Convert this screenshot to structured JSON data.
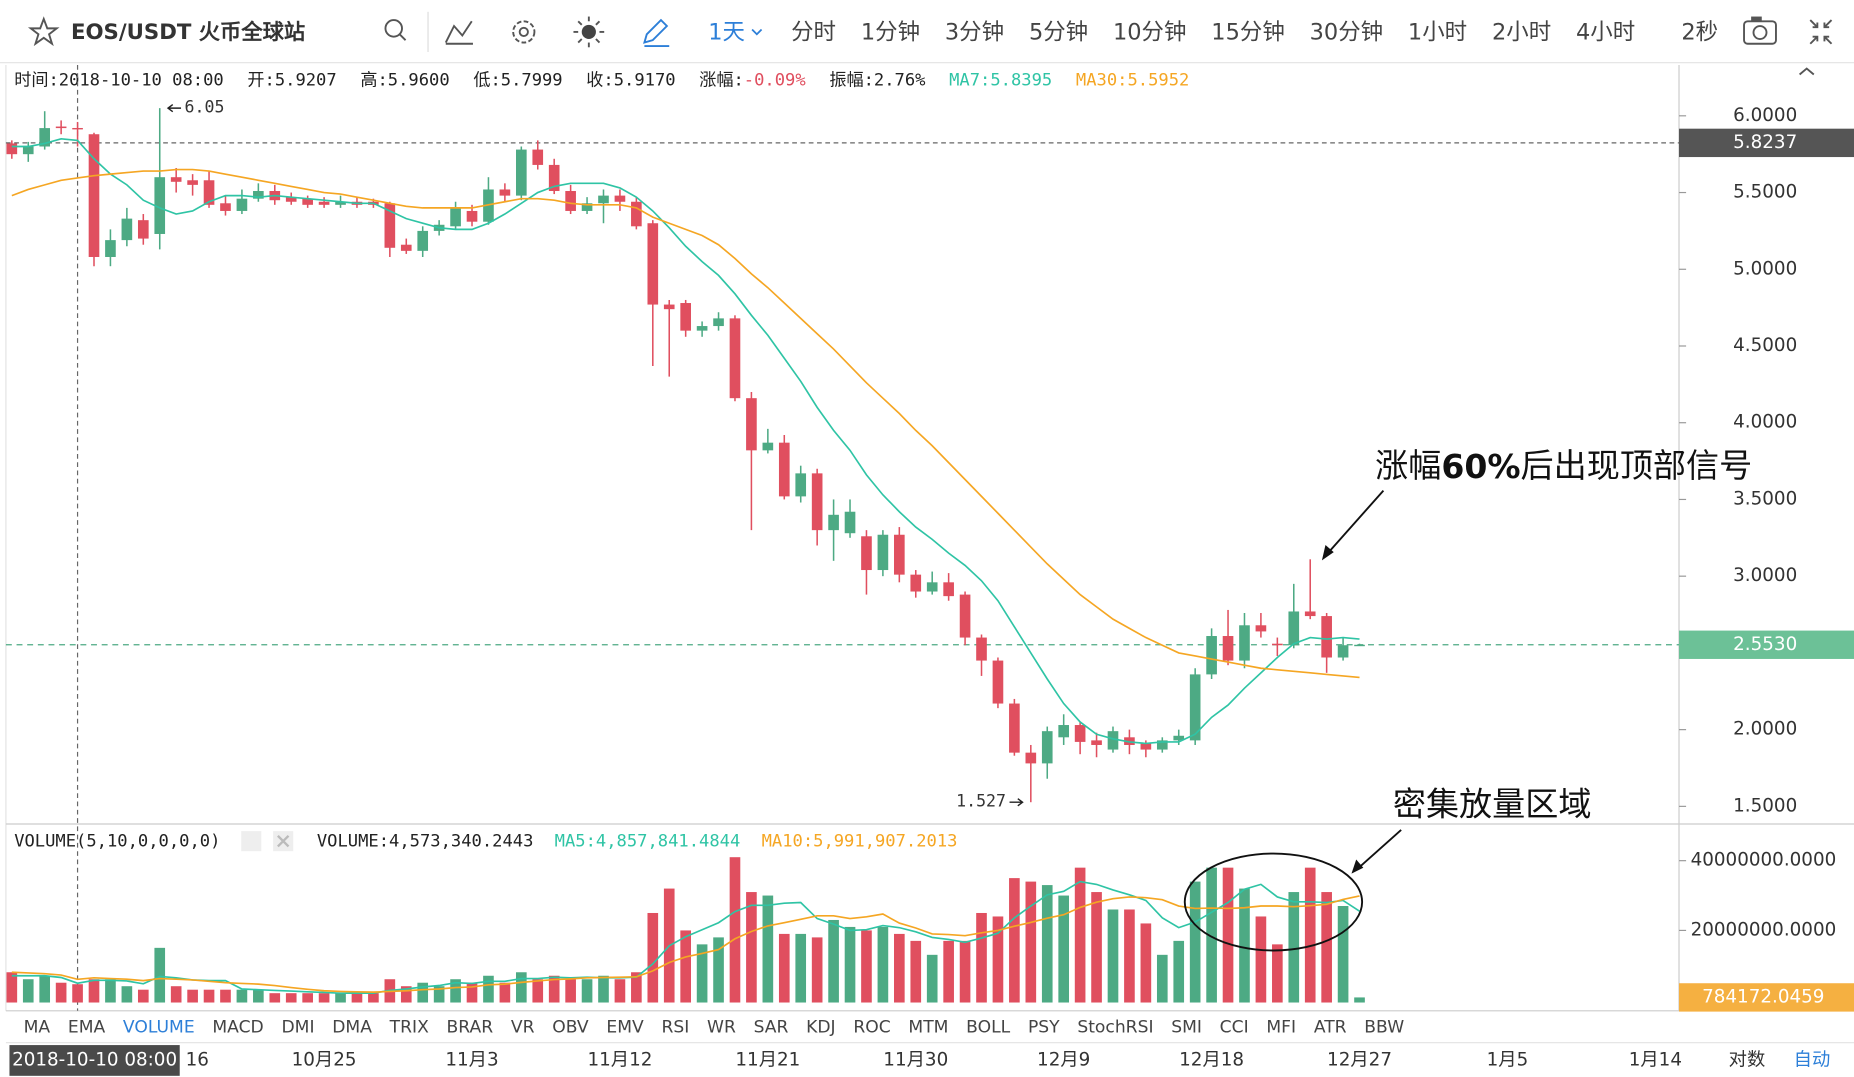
{
  "toolbar": {
    "symbol": "EOS/USDT 火币全球站",
    "intervals": [
      {
        "label": "1天",
        "selected": true
      },
      {
        "label": "分时"
      },
      {
        "label": "1分钟"
      },
      {
        "label": "3分钟"
      },
      {
        "label": "5分钟"
      },
      {
        "label": "10分钟"
      },
      {
        "label": "15分钟"
      },
      {
        "label": "30分钟"
      },
      {
        "label": "1小时"
      },
      {
        "label": "2小时"
      },
      {
        "label": "4小时"
      }
    ],
    "refresh": "2秒"
  },
  "info": [
    {
      "label": "时间:",
      "value": "2018-10-10 08:00"
    },
    {
      "label": "开:",
      "value": "5.9207"
    },
    {
      "label": "高:",
      "value": "5.9600"
    },
    {
      "label": "低:",
      "value": "5.7999"
    },
    {
      "label": "收:",
      "value": "5.9170"
    },
    {
      "label": "涨幅:",
      "value": "-0.09%",
      "value_color": "#e04f5f"
    },
    {
      "label": "振幅:",
      "value": "2.76%"
    },
    {
      "label": "MA7:",
      "value": "5.8395",
      "color": "#2fc4a5"
    },
    {
      "label": "MA30:",
      "value": "5.5952",
      "color": "#f5a623"
    }
  ],
  "chart_data": [
    {
      "type": "candlestick",
      "up_color": "#4daa84",
      "down_color": "#e04f5f",
      "open": [
        5.82,
        5.75,
        5.8,
        5.93,
        5.9207,
        5.88,
        5.08,
        5.19,
        5.32,
        5.23,
        5.6,
        5.58,
        5.58,
        5.43,
        5.38,
        5.46,
        5.51,
        5.47,
        5.46,
        5.44,
        5.42,
        5.44,
        5.44,
        5.43,
        5.16,
        5.12,
        5.25,
        5.28,
        5.38,
        5.31,
        5.52,
        5.48,
        5.78,
        5.68,
        5.51,
        5.38,
        5.43,
        5.48,
        5.44,
        5.3,
        4.77,
        4.78,
        4.6,
        4.63,
        4.68,
        4.16,
        3.82,
        3.87,
        3.52,
        3.67,
        3.3,
        3.28,
        3.26,
        3.04,
        3.27,
        3.01,
        2.9,
        2.96,
        2.88,
        2.6,
        2.45,
        2.17,
        1.85,
        1.78,
        1.95,
        2.03,
        1.93,
        1.87,
        1.95,
        1.91,
        1.87,
        1.93,
        1.93,
        2.36,
        2.61,
        2.45,
        2.68,
        2.56,
        2.55,
        2.77,
        2.74,
        2.47,
        2.55
      ],
      "high": [
        5.84,
        5.83,
        6.03,
        5.97,
        5.96,
        5.89,
        5.26,
        5.4,
        5.36,
        6.05,
        5.66,
        5.62,
        5.64,
        5.48,
        5.52,
        5.56,
        5.55,
        5.5,
        5.48,
        5.47,
        5.48,
        5.47,
        5.46,
        5.44,
        5.2,
        5.28,
        5.32,
        5.44,
        5.42,
        5.6,
        5.56,
        5.8,
        5.84,
        5.72,
        5.55,
        5.47,
        5.52,
        5.52,
        5.47,
        5.32,
        4.8,
        4.8,
        4.66,
        4.72,
        4.7,
        4.2,
        3.96,
        3.92,
        3.72,
        3.7,
        3.5,
        3.5,
        3.3,
        3.3,
        3.32,
        3.04,
        3.03,
        3.02,
        2.9,
        2.62,
        2.47,
        2.2,
        1.9,
        2.02,
        2.1,
        2.05,
        1.98,
        2.02,
        2.0,
        1.93,
        1.95,
        2.0,
        2.4,
        2.66,
        2.78,
        2.76,
        2.76,
        2.6,
        2.95,
        3.11,
        2.76,
        2.6,
        2.56
      ],
      "low": [
        5.72,
        5.7,
        5.78,
        5.88,
        5.7999,
        5.02,
        5.02,
        5.15,
        5.16,
        5.13,
        5.5,
        5.48,
        5.4,
        5.35,
        5.36,
        5.44,
        5.42,
        5.42,
        5.4,
        5.4,
        5.4,
        5.4,
        5.4,
        5.08,
        5.1,
        5.08,
        5.22,
        5.26,
        5.28,
        5.29,
        5.44,
        5.45,
        5.65,
        5.49,
        5.36,
        5.36,
        5.3,
        5.38,
        5.26,
        4.37,
        4.3,
        4.56,
        4.56,
        4.6,
        4.14,
        3.3,
        3.8,
        3.5,
        3.48,
        3.2,
        3.1,
        3.25,
        2.88,
        3.0,
        2.96,
        2.86,
        2.88,
        2.84,
        2.55,
        2.35,
        2.14,
        1.83,
        1.527,
        1.68,
        1.9,
        1.84,
        1.82,
        1.85,
        1.84,
        1.82,
        1.85,
        1.9,
        1.9,
        2.33,
        2.42,
        2.4,
        2.6,
        2.48,
        2.53,
        2.72,
        2.37,
        2.45,
        2.55
      ],
      "close": [
        5.75,
        5.8,
        5.92,
        5.92,
        5.917,
        5.08,
        5.19,
        5.33,
        5.2,
        5.6,
        5.57,
        5.55,
        5.42,
        5.38,
        5.46,
        5.51,
        5.45,
        5.44,
        5.42,
        5.42,
        5.44,
        5.42,
        5.42,
        5.14,
        5.12,
        5.25,
        5.29,
        5.4,
        5.31,
        5.52,
        5.48,
        5.78,
        5.68,
        5.51,
        5.38,
        5.43,
        5.48,
        5.44,
        5.28,
        4.77,
        4.74,
        4.6,
        4.63,
        4.68,
        4.16,
        3.82,
        3.87,
        3.52,
        3.67,
        3.3,
        3.4,
        3.42,
        3.04,
        3.27,
        3.01,
        2.9,
        2.96,
        2.87,
        2.6,
        2.45,
        2.17,
        1.85,
        1.78,
        1.99,
        2.03,
        1.92,
        1.9,
        1.99,
        1.9,
        1.87,
        1.93,
        1.96,
        2.36,
        2.61,
        2.45,
        2.68,
        2.64,
        2.55,
        2.77,
        2.74,
        2.47,
        2.55,
        2.553
      ],
      "series": [
        {
          "name": "MA7",
          "color": "#2fc4a5",
          "values": [
            5.8,
            5.8,
            5.82,
            5.85,
            5.8395,
            5.72,
            5.62,
            5.55,
            5.45,
            5.4,
            5.36,
            5.38,
            5.44,
            5.48,
            5.48,
            5.47,
            5.48,
            5.47,
            5.46,
            5.45,
            5.44,
            5.43,
            5.43,
            5.38,
            5.33,
            5.3,
            5.27,
            5.26,
            5.26,
            5.3,
            5.36,
            5.43,
            5.5,
            5.54,
            5.56,
            5.56,
            5.56,
            5.53,
            5.47,
            5.38,
            5.27,
            5.15,
            5.05,
            4.96,
            4.84,
            4.7,
            4.57,
            4.42,
            4.27,
            4.1,
            3.95,
            3.82,
            3.66,
            3.53,
            3.42,
            3.32,
            3.24,
            3.15,
            3.07,
            2.97,
            2.84,
            2.67,
            2.5,
            2.33,
            2.17,
            2.05,
            1.97,
            1.94,
            1.92,
            1.91,
            1.92,
            1.92,
            1.97,
            2.08,
            2.16,
            2.27,
            2.37,
            2.47,
            2.56,
            2.6,
            2.59,
            2.6,
            2.59
          ]
        },
        {
          "name": "MA30",
          "color": "#f5a623",
          "values": [
            5.48,
            5.52,
            5.55,
            5.58,
            5.5952,
            5.61,
            5.62,
            5.63,
            5.64,
            5.64,
            5.65,
            5.65,
            5.64,
            5.62,
            5.6,
            5.58,
            5.56,
            5.54,
            5.52,
            5.5,
            5.49,
            5.47,
            5.45,
            5.43,
            5.41,
            5.4,
            5.4,
            5.4,
            5.4,
            5.42,
            5.44,
            5.46,
            5.46,
            5.45,
            5.43,
            5.42,
            5.42,
            5.42,
            5.4,
            5.34,
            5.3,
            5.26,
            5.22,
            5.16,
            5.07,
            4.97,
            4.88,
            4.78,
            4.68,
            4.58,
            4.48,
            4.37,
            4.26,
            4.16,
            4.06,
            3.95,
            3.85,
            3.74,
            3.63,
            3.52,
            3.41,
            3.3,
            3.19,
            3.08,
            2.98,
            2.88,
            2.8,
            2.72,
            2.66,
            2.6,
            2.55,
            2.5,
            2.48,
            2.46,
            2.44,
            2.42,
            2.4,
            2.39,
            2.38,
            2.37,
            2.36,
            2.35,
            2.34
          ]
        }
      ],
      "ylim": [
        1.385,
        6.331
      ],
      "yticks": [
        {
          "value": 6,
          "label": "6.0000"
        },
        {
          "value": 5.5,
          "label": "5.5000"
        },
        {
          "value": 5,
          "label": "5.0000"
        },
        {
          "value": 4.5,
          "label": "4.5000"
        },
        {
          "value": 4,
          "label": "4.0000"
        },
        {
          "value": 3.5,
          "label": "3.5000"
        },
        {
          "value": 3,
          "label": "3.0000"
        },
        {
          "value": 2.5,
          "label": "2.5000"
        },
        {
          "value": 2,
          "label": "2.0000"
        },
        {
          "value": 1.5,
          "label": "1.5000"
        }
      ],
      "xticks": [
        {
          "value": 10,
          "label": "16"
        },
        {
          "value": 19,
          "label": "10月25"
        },
        {
          "value": 28,
          "label": "11月3"
        },
        {
          "value": 37,
          "label": "11月12"
        },
        {
          "value": 46,
          "label": "11月21"
        },
        {
          "value": 55,
          "label": "11月30"
        },
        {
          "value": 64,
          "label": "12月9"
        },
        {
          "value": 73,
          "label": "12月18"
        },
        {
          "value": 82,
          "label": "12月27"
        },
        {
          "value": 91,
          "label": "1月5"
        },
        {
          "value": 100,
          "label": "1月14"
        }
      ],
      "crosshair": {
        "index": 4,
        "label": "2018-10-10 08:00",
        "price": {
          "value": 5.8237,
          "label": "5.8237"
        }
      },
      "last_price": {
        "value": 2.553,
        "label": "2.5530"
      }
    },
    {
      "type": "bar",
      "title": "VOLUME(5,10,0,0,0,0)",
      "readouts": [
        {
          "text": "VOLUME:4,573,340.2443",
          "color": "#222"
        },
        {
          "text": "MA5:4,857,841.4844",
          "color": "#2fc4a5"
        },
        {
          "text": "MA10:5,991,907.2013",
          "color": "#f5a623"
        }
      ],
      "values": [
        8000000.0,
        6000000.0,
        7000000.0,
        5000000.0,
        4573340.2443,
        6000000.0,
        6000000.0,
        4000000.0,
        3000000.0,
        15000000.0,
        4000000.0,
        3000000.0,
        3000000.0,
        3000000.0,
        3000000.0,
        3000000.0,
        2000000.0,
        2000000.0,
        2000000.0,
        2000000.0,
        2000000.0,
        2000000.0,
        2000000.0,
        6000000.0,
        4000000.0,
        5000000.0,
        4000000.0,
        6000000.0,
        5000000.0,
        7000000.0,
        5000000.0,
        8000000.0,
        6000000.0,
        7000000.0,
        6000000.0,
        6000000.0,
        7000000.0,
        6000000.0,
        8000000.0,
        25000000.0,
        32000000.0,
        20000000.0,
        16000000.0,
        18000000.0,
        41000000.0,
        31000000.0,
        30000000.0,
        19000000.0,
        19000000.0,
        18000000.0,
        23000000.0,
        21000000.0,
        20000000.0,
        21000000.0,
        19000000.0,
        17000000.0,
        13000000.0,
        17000000.0,
        17000000.0,
        25000000.0,
        24000000.0,
        35000000.0,
        34000000.0,
        33000000.0,
        30000000.0,
        38000000.0,
        31000000.0,
        26000000.0,
        26000000.0,
        22000000.0,
        13000000.0,
        17000000.0,
        34000000.0,
        38000000.0,
        38000000.0,
        32000000.0,
        24000000.0,
        16000000.0,
        31000000.0,
        38000000.0,
        31000000.0,
        27000000.0,
        784172.0459
      ],
      "series": [
        {
          "name": "MA5",
          "color": "#2fc4a5",
          "values": [
            7000000.0,
            7000000.0,
            7000000.0,
            6500000.0,
            4857841.4844,
            5700000.0,
            5700000.0,
            5500000.0,
            4700000.0,
            6800000.0,
            6400000.0,
            5800000.0,
            5600000.0,
            5600000.0,
            3200000.0,
            3000000.0,
            2800000.0,
            2600000.0,
            2400000.0,
            2200000.0,
            2000000.0,
            2000000.0,
            2000000.0,
            2800000.0,
            3200000.0,
            3800000.0,
            4200000.0,
            5000000.0,
            4800000.0,
            5400000.0,
            5400000.0,
            6200000.0,
            6200000.0,
            6600000.0,
            6400000.0,
            6600000.0,
            6400000.0,
            6400000.0,
            6600000.0,
            10400000.0,
            15600000.0,
            18200000.0,
            20200000.0,
            22200000.0,
            25400000.0,
            27200000.0,
            27200000.0,
            27800000.0,
            28000000.0,
            23400000.0,
            21800000.0,
            20000000.0,
            20200000.0,
            21400000.0,
            20800000.0,
            19600000.0,
            18000000.0,
            17400000.0,
            16600000.0,
            17800000.0,
            19200000.0,
            23600000.0,
            27000000.0,
            30200000.0,
            31200000.0,
            34000000.0,
            33200000.0,
            31600000.0,
            30200000.0,
            28600000.0,
            23600000.0,
            20800000.0,
            22400000.0,
            25200000.0,
            28000000.0,
            31800000.0,
            33200000.0,
            29600000.0,
            28200000.0,
            28200000.0,
            28000000.0,
            28600000.0,
            25500000.0
          ]
        },
        {
          "name": "MA10",
          "color": "#f5a623",
          "values": [
            8000000.0,
            7800000.0,
            7600000.0,
            7200000.0,
            5991907.2013,
            6400000.0,
            6200000.0,
            6000000.0,
            5600000.0,
            6200000.0,
            6000000.0,
            5800000.0,
            5400000.0,
            5000000.0,
            4800000.0,
            4600000.0,
            4200000.0,
            3600000.0,
            3100000.0,
            2700000.0,
            2500000.0,
            2400000.0,
            2300000.0,
            2500000.0,
            2700000.0,
            3000000.0,
            3200000.0,
            3600000.0,
            3800000.0,
            4400000.0,
            4600000.0,
            5100000.0,
            5500000.0,
            5900000.0,
            6100000.0,
            6400000.0,
            6500000.0,
            6600000.0,
            6700000.0,
            8400000.0,
            10800000.0,
            12400000.0,
            13400000.0,
            14500000.0,
            17600000.0,
            19700000.0,
            21300000.0,
            22200000.0,
            23200000.0,
            24200000.0,
            24200000.0,
            23400000.0,
            23900000.0,
            24700000.0,
            22100000.0,
            20700000.0,
            19000000.0,
            18800000.0,
            18500000.0,
            19300000.0,
            20000000.0,
            21200000.0,
            22300000.0,
            23500000.0,
            24500000.0,
            26600000.0,
            28100000.0,
            29100000.0,
            29600000.0,
            29400000.0,
            28800000.0,
            27000000.0,
            26300000.0,
            26400000.0,
            26300000.0,
            26500000.0,
            27000000.0,
            27000000.0,
            26800000.0,
            27100000.0,
            27500000.0,
            28900000.0,
            29900000.0
          ]
        }
      ],
      "ylim": [
        0,
        49500000
      ],
      "yticks": [
        {
          "value": 40000000,
          "label": "40000000.0000"
        },
        {
          "value": 20000000,
          "label": "20000000.0000"
        }
      ],
      "last_color": "#f5b041"
    }
  ],
  "annotations": [
    [
      "涨幅",
      "60%",
      "后出现顶部信号"
    ],
    [
      "密集放量区域"
    ]
  ],
  "indicator_tabs": [
    {
      "label": "MA"
    },
    {
      "label": "EMA"
    },
    {
      "label": "VOLUME",
      "selected": true
    },
    {
      "label": "MACD"
    },
    {
      "label": "DMI"
    },
    {
      "label": "DMA"
    },
    {
      "label": "TRIX"
    },
    {
      "label": "BRAR"
    },
    {
      "label": "VR"
    },
    {
      "label": "OBV"
    },
    {
      "label": "EMV"
    },
    {
      "label": "RSI"
    },
    {
      "label": "WR"
    },
    {
      "label": "SAR"
    },
    {
      "label": "KDJ"
    },
    {
      "label": "ROC"
    },
    {
      "label": "MTM"
    },
    {
      "label": "BOLL"
    },
    {
      "label": "PSY"
    },
    {
      "label": "StochRSI"
    },
    {
      "label": "SMI"
    },
    {
      "label": "CCI"
    },
    {
      "label": "MFI"
    },
    {
      "label": "ATR"
    },
    {
      "label": "BBW"
    }
  ],
  "axis_options": [
    {
      "label": "对数"
    },
    {
      "label": "自动",
      "selected": true
    }
  ]
}
